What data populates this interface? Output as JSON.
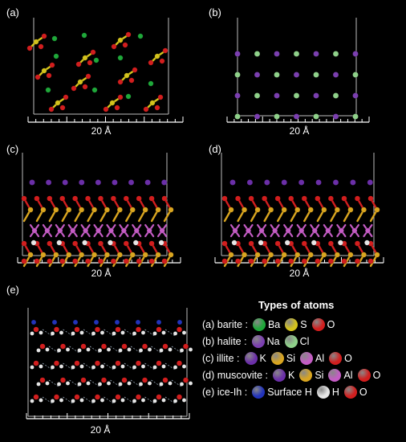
{
  "panels": [
    {
      "id": "a",
      "label": "(a)",
      "scale": "20 Å"
    },
    {
      "id": "b",
      "label": "(b)",
      "scale": "20 Å"
    },
    {
      "id": "c",
      "label": "(c)",
      "scale": "20 Å"
    },
    {
      "id": "d",
      "label": "(d)",
      "scale": "20 Å"
    },
    {
      "id": "e",
      "label": "(e)",
      "scale": "20 Å"
    }
  ],
  "legend": {
    "title": "Types of atoms",
    "rows": [
      {
        "prefix": "(a) barite :",
        "atoms": [
          {
            "name": "Ba",
            "color": "#1fa83a"
          },
          {
            "name": "S",
            "color": "#d4c31d"
          },
          {
            "name": "O",
            "color": "#d21e1e"
          }
        ]
      },
      {
        "prefix": "(b) halite :",
        "atoms": [
          {
            "name": "Na",
            "color": "#7b3fb0"
          },
          {
            "name": "Cl",
            "color": "#8fd18a"
          }
        ]
      },
      {
        "prefix": "(c) illite :",
        "atoms": [
          {
            "name": "K",
            "color": "#6b2fa8"
          },
          {
            "name": "Si",
            "color": "#d9a520"
          },
          {
            "name": "Al",
            "color": "#c45cc4"
          },
          {
            "name": "O",
            "color": "#d21e1e"
          }
        ]
      },
      {
        "prefix": "(d) muscovite :",
        "atoms": [
          {
            "name": "K",
            "color": "#6b2fa8"
          },
          {
            "name": "Si",
            "color": "#d9a520"
          },
          {
            "name": "Al",
            "color": "#c45cc4"
          },
          {
            "name": "O",
            "color": "#d21e1e"
          }
        ]
      },
      {
        "prefix": "(e) ice-Ih :",
        "atoms": [
          {
            "name": "Surface H",
            "color": "#2233bb"
          },
          {
            "name": "H",
            "color": "#e6e6e6"
          },
          {
            "name": "O",
            "color": "#d21e1e"
          }
        ]
      }
    ]
  }
}
